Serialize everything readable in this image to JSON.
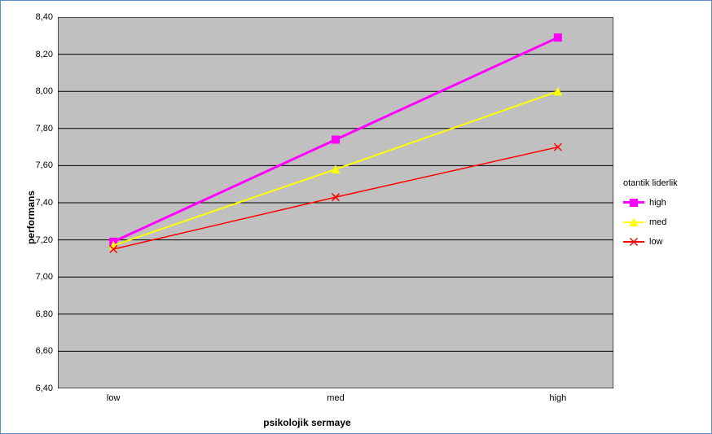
{
  "chart": {
    "type": "line",
    "plot_background": "#c0c0c0",
    "frame_border_color": "#5b8cc8",
    "axis_line_color": "#000000",
    "grid_color": "#000000",
    "ylabel": "performans",
    "xlabel": "psikolojik sermaye",
    "legend_title": "otantik liderlik",
    "x_categories": [
      "low",
      "med",
      "high"
    ],
    "y": {
      "min": 6.4,
      "max": 8.4,
      "step": 0.2,
      "decimal_sep": ",",
      "decimals": 2
    },
    "series": [
      {
        "name": "high",
        "color": "#ff00ff",
        "line_width": 3,
        "marker": "square",
        "values": [
          7.19,
          7.74,
          8.29
        ]
      },
      {
        "name": "med",
        "color": "#ffff00",
        "line_width": 2,
        "marker": "triangle",
        "values": [
          7.17,
          7.58,
          8.0
        ]
      },
      {
        "name": "low",
        "color": "#ff0000",
        "line_width": 1.5,
        "marker": "x",
        "values": [
          7.15,
          7.43,
          7.7
        ]
      }
    ],
    "tick_font_size": 11,
    "label_font_size": 12
  }
}
